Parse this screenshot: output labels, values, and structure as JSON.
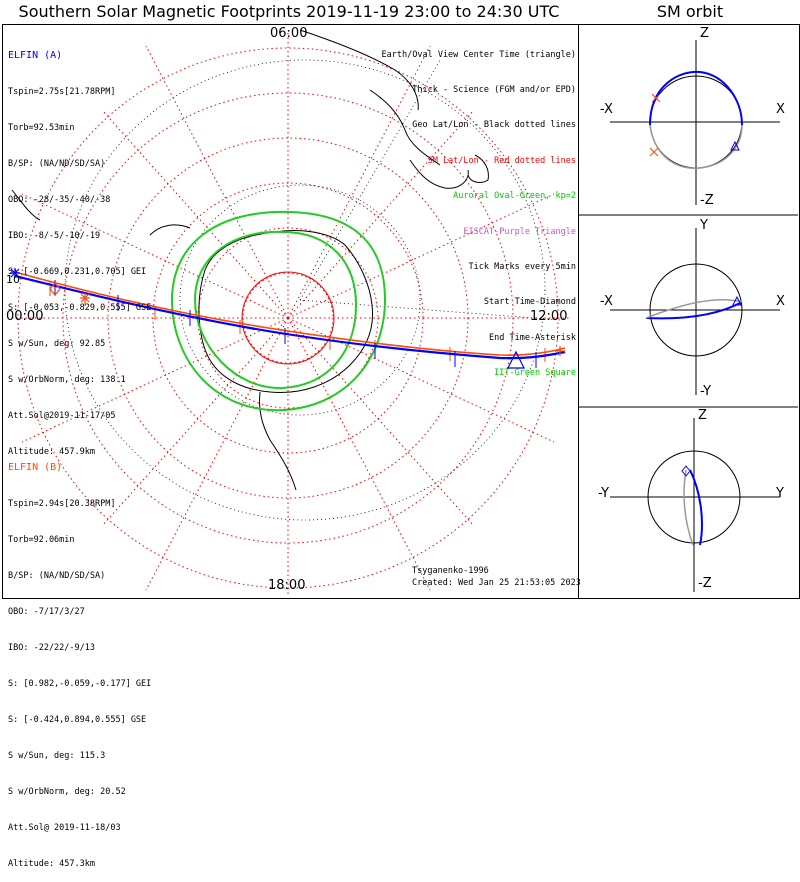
{
  "title": "Southern Solar Magnetic Footprints 2019-11-19 23:00 to 24:30 UTC",
  "orbit_title": "SM orbit",
  "time_labels": {
    "top": "06:00",
    "left": "00:00",
    "right": "12:00",
    "bottom": "18:00",
    "left_edge": "10"
  },
  "elfin_a": {
    "header": "ELFIN (A)",
    "lines": [
      "Tspin=2.75s[21.78RPM]",
      "Torb=92.53min",
      "B/SP: (NA/ND/SD/SA)",
      "OBO: -28/-35/-40/-38",
      "IBO: -8/-5/-10/-19",
      "S: [-0.669,0.231,0.705] GEI",
      "S: [-0.053,-0.829,0.555] GSE",
      "S w/Sun, deg: 92.85",
      "S w/OrbNorm, deg: 138.1",
      "Att.Sol@2019-11-17/05",
      "Altitude: 457.9km"
    ],
    "color": "#0000ff"
  },
  "elfin_b": {
    "header": "ELFIN (B)",
    "lines": [
      "Tspin=2.94s[20.38RPM]",
      "Torb=92.06min",
      "B/SP: (NA/ND/SD/SA)",
      "OBO: -7/17/3/27",
      "IBO: -22/22/-9/13",
      "S: [0.982,-0.059,-0.177] GEI",
      "S: [-0.424,0.894,0.555] GSE",
      "S w/Sun, deg: 115.3",
      "S w/OrbNorm, deg: 20.52",
      "Att.Sol@ 2019-11-18/03",
      "Altitude: 457.3km"
    ],
    "color": "#ff4a00"
  },
  "legend": [
    {
      "text": "Earth/Oval View Center Time (triangle)",
      "color": "#000000"
    },
    {
      "text": "Thick - Science (FGM and/or EPD)",
      "color": "#000000"
    },
    {
      "text": "Geo Lat/Lon - Black dotted lines",
      "color": "#000000"
    },
    {
      "text": "SM Lat/Lon - Red dotted lines",
      "color": "#ff0000"
    },
    {
      "text": "Auroral Oval-Green, kp=2",
      "color": "#00cc00"
    },
    {
      "text": "EISCAT-Purple Triangle",
      "color": "#cc55cc"
    },
    {
      "text": "Tick Marks every 5min",
      "color": "#000000"
    },
    {
      "text": "Start Time-Diamond",
      "color": "#000000"
    },
    {
      "text": "End Time-Asterisk",
      "color": "#000000"
    },
    {
      "text": "IIT-Green Square",
      "color": "#00cc00"
    }
  ],
  "credit": {
    "author": "Tsyganenko-1996",
    "created": "Created: Wed Jan 25 21:53:05 2023"
  },
  "orbit_panels": [
    {
      "top": "Z",
      "bottom": "-Z",
      "left": "-X",
      "right": "X"
    },
    {
      "top": "Y",
      "bottom": "-Y",
      "left": "-X",
      "right": "X"
    },
    {
      "top": "Z",
      "bottom": "-Z",
      "left": "-Y",
      "right": "Y"
    }
  ]
}
